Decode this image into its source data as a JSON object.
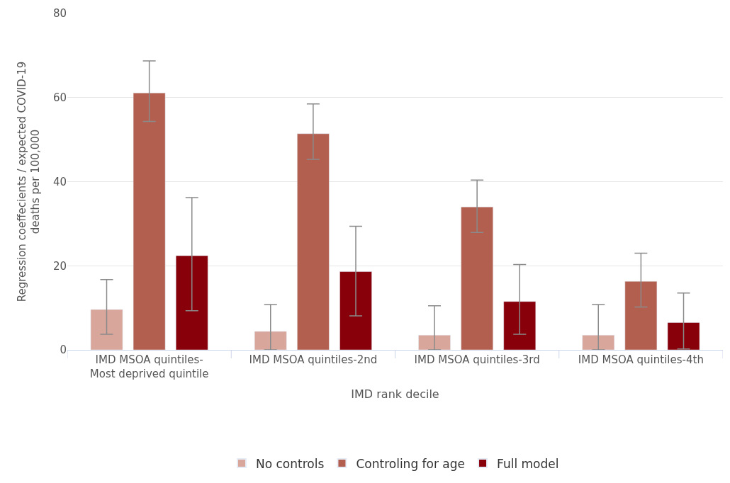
{
  "chart_data": {
    "type": "bar",
    "xlabel": "IMD rank decile",
    "ylabel": "Regression coeffecients / expected COVID-19 deaths per 100,000",
    "categories": [
      "IMD MSOA quintiles-Most deprived quintile",
      "IMD MSOA quintiles-2nd",
      "IMD MSOA quintiles-3rd",
      "IMD MSOA quintiles-4th"
    ],
    "series": [
      {
        "name": "No controls",
        "color": "#d8a69b",
        "values": [
          9.6,
          4.4,
          3.5,
          3.5
        ],
        "errors": [
          [
            3.7,
            16.7
          ],
          [
            0,
            10.8
          ],
          [
            0,
            10.5
          ],
          [
            0,
            10.8
          ]
        ]
      },
      {
        "name": "Controling for age",
        "color": "#b35f50",
        "values": [
          61.1,
          51.4,
          34.0,
          16.3
        ],
        "errors": [
          [
            54.3,
            68.7
          ],
          [
            45.3,
            58.5
          ],
          [
            27.9,
            40.4
          ],
          [
            10.2,
            23.0
          ]
        ]
      },
      {
        "name": "Full model",
        "color": "#88000a",
        "values": [
          22.4,
          18.6,
          11.5,
          6.5
        ],
        "errors": [
          [
            9.3,
            36.2
          ],
          [
            8.1,
            29.4
          ],
          [
            3.7,
            20.3
          ],
          [
            0.2,
            13.5
          ]
        ]
      }
    ],
    "ylim": [
      0,
      80
    ],
    "yticks": [
      0,
      20,
      40,
      60,
      80
    ],
    "grid": "y",
    "legend": "bottom"
  }
}
